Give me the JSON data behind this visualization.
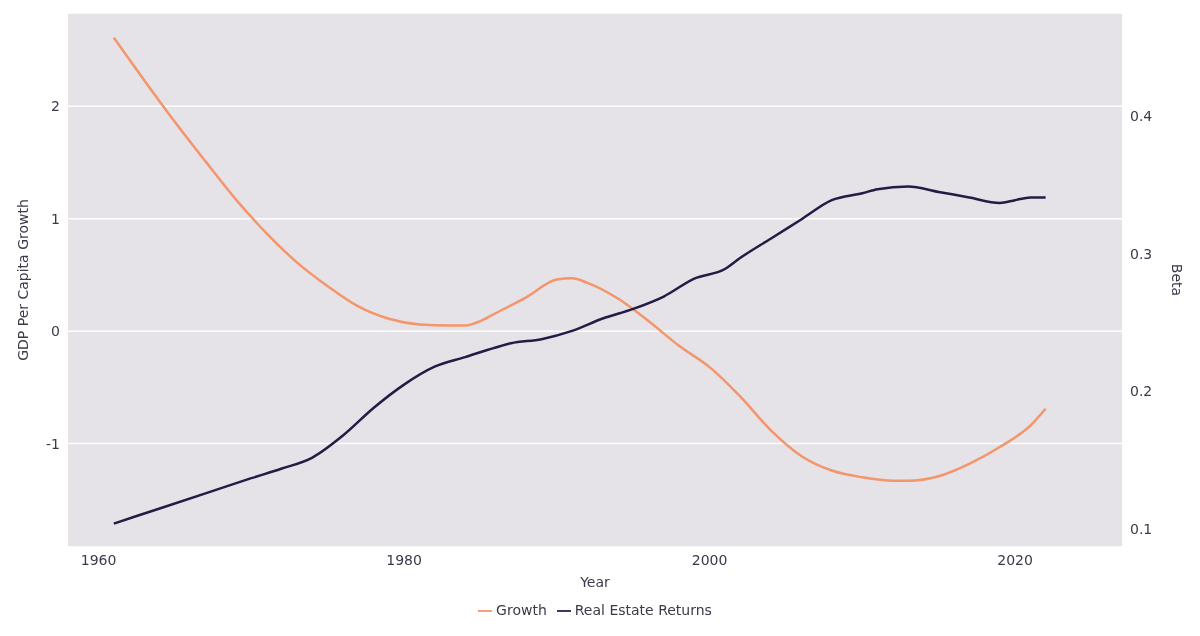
{
  "chart_data": {
    "type": "line",
    "xlabel": "Year",
    "ylabel": "GDP Per Capita Growth",
    "y2label": "Beta",
    "xlim": [
      1958,
      2027
    ],
    "xticks": [
      1960,
      1980,
      2000,
      2020
    ],
    "ylim": [
      -1.92,
      2.83
    ],
    "yticks": [
      -1,
      0,
      1,
      2
    ],
    "y2lim": [
      0.087,
      0.475
    ],
    "y2ticks": [
      0.1,
      0.2,
      0.3,
      0.4
    ],
    "grid": "y",
    "legend": "bottom",
    "marker": "none",
    "line_style": "solid",
    "series": [
      {
        "name": "Growth",
        "color": "#f4956a",
        "x": [
          1961,
          1963,
          1965,
          1967,
          1969,
          1971,
          1973,
          1975,
          1977,
          1979,
          1981,
          1983,
          1984,
          1985,
          1986,
          1988,
          1990,
          1991,
          1992,
          1994,
          1996,
          1998,
          2000,
          2002,
          2004,
          2006,
          2008,
          2010,
          2012,
          2013,
          2015,
          2017,
          2019,
          2021,
          2022
        ],
        "values": [
          2.61,
          2.23,
          1.86,
          1.51,
          1.17,
          0.87,
          0.61,
          0.4,
          0.22,
          0.11,
          0.06,
          0.05,
          0.05,
          0.09,
          0.16,
          0.3,
          0.46,
          0.47,
          0.43,
          0.29,
          0.09,
          -0.13,
          -0.32,
          -0.58,
          -0.88,
          -1.11,
          -1.24,
          -1.3,
          -1.33,
          -1.33,
          -1.29,
          -1.18,
          -1.03,
          -0.84,
          -0.69
        ]
      },
      {
        "name": "Real Estate Returns",
        "color": "#231d45",
        "axis": "y2",
        "x": [
          1961,
          1964,
          1967,
          1970,
          1972,
          1974,
          1976,
          1978,
          1980,
          1982,
          1984,
          1986,
          1987,
          1989,
          1991,
          1993,
          1995,
          1997,
          1999,
          2001,
          2002,
          2004,
          2006,
          2008,
          2010,
          2011,
          2013,
          2015,
          2017,
          2019,
          2020,
          2021,
          2022
        ],
        "values": [
          0.104,
          0.115,
          0.126,
          0.137,
          0.144,
          0.152,
          0.168,
          0.188,
          0.205,
          0.218,
          0.225,
          0.232,
          0.235,
          0.238,
          0.244,
          0.253,
          0.26,
          0.269,
          0.282,
          0.289,
          0.297,
          0.311,
          0.325,
          0.339,
          0.344,
          0.347,
          0.349,
          0.345,
          0.341,
          0.337,
          0.339,
          0.341,
          0.341
        ]
      }
    ]
  }
}
